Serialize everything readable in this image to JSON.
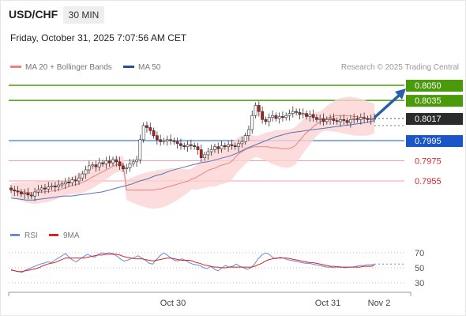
{
  "header": {
    "pair": "USD/CHF",
    "timeframe": "30 MIN",
    "timestamp": "Friday, October 31, 2025 7:07:56 AM CET"
  },
  "legend": {
    "ma20": "MA 20 + Bollinger Bands",
    "ma50": "MA 50",
    "credit": "Research © 2025 Trading Central"
  },
  "rsi_legend": {
    "rsi": "RSI",
    "ma9": "9MA"
  },
  "colors": {
    "target": "#4a9a0a",
    "current": "#2b2b2b",
    "pivot": "#1a56c8",
    "support": "#d9262c",
    "support_line": "#f0a0a0",
    "bollinger": "#fbd3d3",
    "ma20": "#f08080",
    "ma50": "#5575b5",
    "rsi": "#6688dd",
    "rsi_ma": "#dd2222",
    "arrow": "#2a5fa8"
  },
  "chart_data": [
    {
      "type": "candlestick",
      "title": "USD/CHF 30 MIN",
      "x_ticks": [
        "Oct 30",
        "Oct 31",
        "Nov 2"
      ],
      "ylim": [
        0.793,
        0.806
      ],
      "levels": [
        {
          "role": "target",
          "value": "0.8050"
        },
        {
          "role": "target",
          "value": "0.8035"
        },
        {
          "role": "current",
          "value": "0.8017"
        },
        {
          "role": "pivot",
          "value": "0.7995"
        },
        {
          "role": "support",
          "value": "0.7975"
        },
        {
          "role": "support",
          "value": "0.7955"
        }
      ],
      "close": [
        0.7946,
        0.7945,
        0.7944,
        0.7942,
        0.7943,
        0.7941,
        0.794,
        0.7944,
        0.7946,
        0.7948,
        0.7947,
        0.7949,
        0.795,
        0.7949,
        0.7951,
        0.7952,
        0.7954,
        0.7953,
        0.7956,
        0.7955,
        0.7958,
        0.7962,
        0.7966,
        0.797,
        0.7971,
        0.7969,
        0.7973,
        0.7972,
        0.7975,
        0.7973,
        0.7976,
        0.7974,
        0.797,
        0.7967,
        0.7968,
        0.7972,
        0.7974,
        0.7976,
        0.7996,
        0.801,
        0.8008,
        0.8005,
        0.8,
        0.7996,
        0.7994,
        0.7995,
        0.7996,
        0.7995,
        0.7994,
        0.7992,
        0.799,
        0.7989,
        0.7991,
        0.799,
        0.7989,
        0.7986,
        0.7978,
        0.7981,
        0.7984,
        0.7986,
        0.7989,
        0.7987,
        0.799,
        0.7989,
        0.7991,
        0.799,
        0.7989,
        0.7992,
        0.7994,
        0.8,
        0.8006,
        0.802,
        0.803,
        0.8024,
        0.8016,
        0.8014,
        0.8018,
        0.802,
        0.8017,
        0.8019,
        0.8018,
        0.802,
        0.8022,
        0.8024,
        0.8023,
        0.8021,
        0.8022,
        0.8019,
        0.8021,
        0.8018,
        0.8016,
        0.8017,
        0.8014,
        0.8016,
        0.8017,
        0.8015,
        0.8014,
        0.8016,
        0.8015,
        0.8013,
        0.8016,
        0.8017,
        0.8016,
        0.8018,
        0.8017,
        0.8016,
        0.8017,
        0.8017
      ],
      "ma20": [
        0.7946,
        0.7946,
        0.7946,
        0.7946,
        0.7946,
        0.7946,
        0.7946,
        0.7946,
        0.7946,
        0.7947,
        0.7947,
        0.7948,
        0.7949,
        0.795,
        0.7951,
        0.7952,
        0.7953,
        0.7954,
        0.7955,
        0.7957,
        0.7958,
        0.796,
        0.7962,
        0.7964,
        0.7966,
        0.7967,
        0.7968,
        0.797,
        0.7971,
        0.7972,
        0.7973,
        0.7976,
        0.798,
        0.7983,
        0.7985,
        0.7987,
        0.7988,
        0.7989,
        0.7989,
        0.7989,
        0.7989,
        0.7989,
        0.7988,
        0.7988,
        0.7988,
        0.7987,
        0.7987,
        0.7987,
        0.7988,
        0.799,
        0.7994,
        0.7998,
        0.8002,
        0.8005,
        0.8008,
        0.8011,
        0.8013,
        0.8015,
        0.8017,
        0.8018,
        0.8019,
        0.802,
        0.802,
        0.802,
        0.802,
        0.802,
        0.8019,
        0.8019,
        0.8018,
        0.8018,
        0.8017,
        0.8017,
        0.8017
      ],
      "ma20_x_start_index": 34,
      "ma50_note": "values below",
      "ma50": [
        0.7938,
        0.7937,
        0.7936,
        0.7936,
        0.7937,
        0.7938,
        0.7939,
        0.794,
        0.794,
        0.7941,
        0.7942,
        0.7943,
        0.7944,
        0.7946,
        0.7948,
        0.795,
        0.7952,
        0.7955,
        0.7957,
        0.796,
        0.7962,
        0.7965,
        0.7967,
        0.7969,
        0.7971,
        0.7973,
        0.7974,
        0.7976,
        0.7978,
        0.798,
        0.7983,
        0.7987,
        0.799,
        0.7993,
        0.7996,
        0.7999,
        0.8001,
        0.8003,
        0.8004,
        0.8005,
        0.8006,
        0.8007,
        0.8008,
        0.8009,
        0.801,
        0.8011,
        0.8012,
        0.8013,
        0.8015
      ]
    },
    {
      "type": "line",
      "title": "RSI",
      "y_ticks": [
        "70",
        "50",
        "30"
      ],
      "ylim": [
        20,
        80
      ],
      "series": [
        {
          "name": "RSI",
          "values": [
            48,
            46,
            45,
            44,
            47,
            49,
            51,
            53,
            55,
            56,
            58,
            57,
            60,
            63,
            66,
            69,
            64,
            60,
            58,
            62,
            65,
            68,
            66,
            64,
            68,
            70,
            69,
            70,
            69,
            66,
            62,
            59,
            60,
            62,
            64,
            66,
            63,
            60,
            56,
            55,
            61,
            66,
            70,
            67,
            63,
            60,
            59,
            62,
            60,
            57,
            55,
            54,
            53,
            50,
            49,
            52,
            48,
            46,
            50,
            53,
            51,
            52,
            55,
            52,
            50,
            48,
            50,
            55,
            62,
            67,
            70,
            68,
            64,
            62,
            64,
            63,
            61,
            60,
            59,
            58,
            57,
            56,
            56,
            55,
            54,
            53,
            52,
            51,
            51,
            50,
            52,
            51,
            50,
            51,
            51,
            52,
            53,
            53,
            54,
            54,
            55
          ]
        },
        {
          "name": "9MA",
          "values": [
            47,
            46,
            45,
            45,
            46,
            47,
            48,
            49,
            51,
            53,
            55,
            56,
            57,
            59,
            61,
            63,
            63,
            63,
            63,
            63,
            63,
            64,
            65,
            66,
            67,
            67,
            68,
            68,
            68,
            68,
            67,
            65,
            64,
            63,
            62,
            62,
            62,
            61,
            60,
            59,
            60,
            61,
            62,
            63,
            63,
            62,
            61,
            60,
            60,
            60,
            59,
            57,
            56,
            54,
            53,
            52,
            51,
            51,
            50,
            50,
            51,
            51,
            51,
            51,
            51,
            51,
            51,
            52,
            54,
            56,
            59,
            61,
            62,
            63,
            63,
            63,
            63,
            62,
            61,
            60,
            59,
            58,
            57,
            57,
            56,
            55,
            54,
            53,
            52,
            52,
            51,
            51,
            51,
            51,
            51,
            51,
            51,
            52,
            52,
            52,
            53
          ]
        }
      ]
    }
  ]
}
